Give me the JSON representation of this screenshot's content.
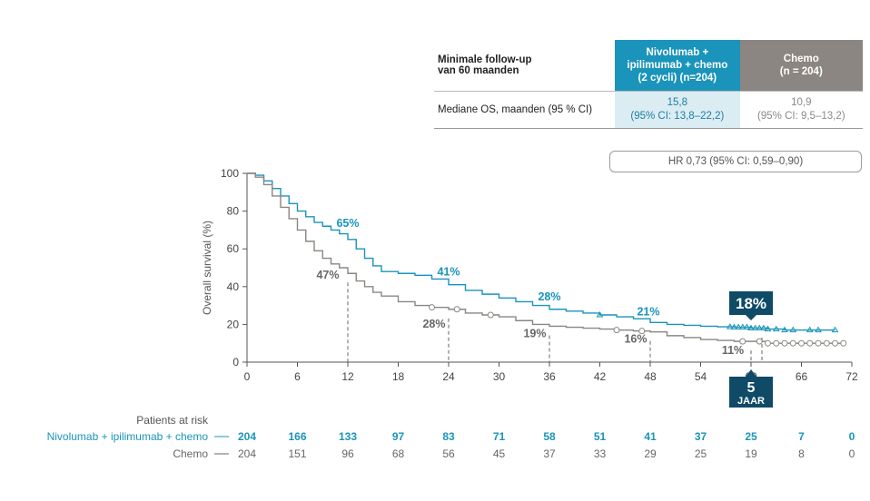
{
  "table": {
    "header_label_1": "Minimale follow-up",
    "header_label_2": "van 60 maanden",
    "nivo_header_1": "Nivolumab +",
    "nivo_header_2": "ipilimumab + chemo",
    "nivo_header_3": "(2 cycli) (n=204)",
    "chemo_header_1": "Chemo",
    "chemo_header_2": "(n = 204)",
    "row_label": "Mediane OS, maanden (95 % CI)",
    "nivo_median": "15,8",
    "nivo_ci": "(95% CI: 13,8–22,2)",
    "chemo_median": "10,9",
    "chemo_ci": "(95% CI: 9,5–13,2)"
  },
  "hr_text": "HR 0,73 (95% CI: 0,59–0,90)",
  "colors": {
    "nivo": "#1a94ba",
    "chemo": "#8b8681",
    "nivo_dark": "#0f4a66",
    "axis": "#555555"
  },
  "chart_data": {
    "type": "line",
    "ylabel": "Overall survival (%)",
    "xlim": [
      0,
      72
    ],
    "ylim": [
      0,
      100
    ],
    "x_ticks": [
      0,
      6,
      12,
      18,
      24,
      30,
      36,
      42,
      48,
      54,
      60,
      66,
      72
    ],
    "y_ticks": [
      0,
      20,
      40,
      60,
      80,
      100
    ],
    "series": [
      {
        "name": "Nivolumab + ipilimumab + chemo",
        "color": "#1a94ba",
        "points": [
          [
            0,
            100
          ],
          [
            1,
            99
          ],
          [
            2,
            96
          ],
          [
            3,
            92
          ],
          [
            4,
            88
          ],
          [
            5,
            84
          ],
          [
            6,
            80
          ],
          [
            7,
            77
          ],
          [
            8,
            74
          ],
          [
            9,
            72
          ],
          [
            10,
            70
          ],
          [
            11,
            68
          ],
          [
            12,
            65
          ],
          [
            13,
            60
          ],
          [
            14,
            55
          ],
          [
            15,
            51
          ],
          [
            16,
            48
          ],
          [
            18,
            47
          ],
          [
            20,
            46
          ],
          [
            22,
            44
          ],
          [
            24,
            41
          ],
          [
            26,
            38
          ],
          [
            28,
            36
          ],
          [
            30,
            34
          ],
          [
            32,
            32
          ],
          [
            34,
            30
          ],
          [
            36,
            28
          ],
          [
            38,
            27
          ],
          [
            40,
            26
          ],
          [
            42,
            25
          ],
          [
            44,
            24
          ],
          [
            46,
            23
          ],
          [
            48,
            21
          ],
          [
            50,
            20
          ],
          [
            52,
            19.5
          ],
          [
            54,
            19
          ],
          [
            56,
            18.7
          ],
          [
            58,
            18.5
          ],
          [
            60,
            18
          ],
          [
            62,
            17.5
          ],
          [
            64,
            17
          ],
          [
            70,
            17
          ]
        ],
        "censor_x": [
          42,
          57.5,
          58,
          58.5,
          59,
          59.5,
          60,
          60.5,
          61,
          61.5,
          62,
          63,
          64,
          65,
          67,
          68,
          70
        ],
        "annotations": [
          {
            "x": 12,
            "y": 65,
            "text": "65%"
          },
          {
            "x": 24,
            "y": 41,
            "text": "41%"
          },
          {
            "x": 36,
            "y": 28,
            "text": "28%"
          },
          {
            "x": 48,
            "y": 21,
            "text": "21%"
          }
        ]
      },
      {
        "name": "Chemo",
        "color": "#8b8681",
        "points": [
          [
            0,
            100
          ],
          [
            1,
            98
          ],
          [
            2,
            94
          ],
          [
            3,
            88
          ],
          [
            4,
            82
          ],
          [
            5,
            76
          ],
          [
            6,
            70
          ],
          [
            7,
            64
          ],
          [
            8,
            59
          ],
          [
            9,
            55
          ],
          [
            10,
            52
          ],
          [
            11,
            50
          ],
          [
            12,
            47
          ],
          [
            13,
            43
          ],
          [
            14,
            40
          ],
          [
            15,
            37
          ],
          [
            16,
            35
          ],
          [
            18,
            32
          ],
          [
            20,
            30
          ],
          [
            22,
            29
          ],
          [
            24,
            28
          ],
          [
            26,
            26
          ],
          [
            28,
            25
          ],
          [
            30,
            24
          ],
          [
            32,
            22
          ],
          [
            34,
            20
          ],
          [
            36,
            19
          ],
          [
            38,
            18.5
          ],
          [
            40,
            18
          ],
          [
            42,
            17.5
          ],
          [
            44,
            17
          ],
          [
            46,
            16.5
          ],
          [
            48,
            16
          ],
          [
            50,
            14
          ],
          [
            52,
            13
          ],
          [
            54,
            12
          ],
          [
            56,
            11.5
          ],
          [
            58,
            11
          ],
          [
            60,
            11
          ],
          [
            62,
            10
          ],
          [
            64,
            10
          ],
          [
            71,
            10
          ]
        ],
        "censor_x": [
          22,
          25,
          29,
          44,
          47,
          59,
          61,
          62,
          63,
          64,
          65,
          66,
          67,
          68,
          69,
          70,
          71
        ],
        "annotations": [
          {
            "x": 12,
            "y": 47,
            "text": "47%"
          },
          {
            "x": 24,
            "y": 28,
            "text": "28%"
          },
          {
            "x": 36,
            "y": 19,
            "text": "19%"
          },
          {
            "x": 48,
            "y": 16,
            "text": "16%"
          },
          {
            "x": 60,
            "y": 11,
            "text": "11%"
          }
        ]
      }
    ],
    "landmark_label": "18%",
    "five_year_label_1": "5",
    "five_year_label_2": "JAAR",
    "at_risk": {
      "title": "Patients at risk",
      "times": [
        0,
        6,
        12,
        18,
        24,
        30,
        36,
        42,
        48,
        54,
        60,
        66,
        72
      ],
      "rows": [
        {
          "name": "Nivolumab + ipilimumab + chemo",
          "values": [
            204,
            166,
            133,
            97,
            83,
            71,
            58,
            51,
            41,
            37,
            25,
            7,
            0
          ]
        },
        {
          "name": "Chemo",
          "values": [
            204,
            151,
            96,
            68,
            56,
            45,
            37,
            33,
            29,
            25,
            19,
            8,
            0
          ]
        }
      ]
    }
  }
}
